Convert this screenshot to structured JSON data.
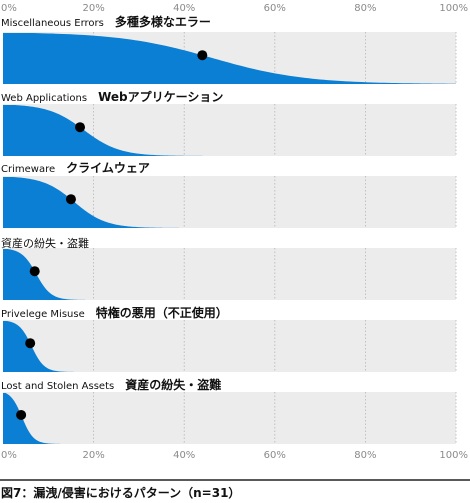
{
  "caption": "図7：漏洩/侵害におけるパターン（n=31）",
  "colors": {
    "fill": "#0a7fd4",
    "band": "#ececec",
    "grid": "#b5b5b5",
    "dot": "#000000",
    "rule": "#222222",
    "tick": "#8a8a8a"
  },
  "chart_data": {
    "type": "area",
    "x_ticks": [
      "0%",
      "20%",
      "40%",
      "60%",
      "80%",
      "100%"
    ],
    "xlim": [
      0,
      100
    ],
    "grid": true,
    "panels": [
      {
        "label_en": "Miscellaneous Errors",
        "label_ja": "多種多様なエラー",
        "point": 44
      },
      {
        "label_en": "Web Applications",
        "label_ja": "Webアプリケーション",
        "point": 17
      },
      {
        "label_en": "Crimeware",
        "label_ja": "クライムウェア",
        "point": 15
      },
      {
        "label_en": "",
        "label_ja": "資産の紛失・盗難",
        "point": 7
      },
      {
        "label_en": "Privelege Misuse",
        "label_ja": "特権の悪用（不正使用）",
        "point": 6
      },
      {
        "label_en": "Lost and Stolen Assets",
        "label_ja": "資産の紛失・盗難",
        "point": 4
      }
    ]
  }
}
